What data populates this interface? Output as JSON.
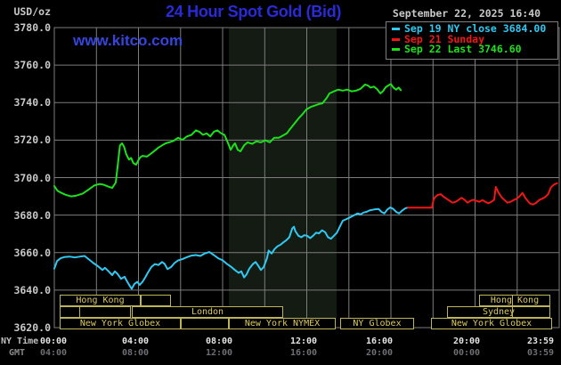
{
  "header": {
    "unit_label": "USD/oz",
    "title": "24 Hour Spot Gold (Bid)",
    "datetime": "September 22, 2025 16:40",
    "watermark": "www.kitco.com"
  },
  "legend": {
    "items": [
      {
        "id": "sep19",
        "label": "Sep 19 NY close 3684.00",
        "color": "#2fc9f2"
      },
      {
        "id": "sep21",
        "label": "Sep 21 Sunday",
        "color": "#f31616"
      },
      {
        "id": "sep22",
        "label": "Sep 22 Last 3746.60",
        "color": "#1ce21c"
      }
    ]
  },
  "axes": {
    "y_ticks": [
      "3780.0",
      "3760.0",
      "3740.0",
      "3720.0",
      "3700.0",
      "3680.0",
      "3660.0",
      "3640.0",
      "3620.0"
    ],
    "x_tick_centers": [
      60,
      152,
      246,
      341,
      426,
      524,
      607
    ],
    "rows": [
      {
        "header": "NY Time",
        "labels": [
          "00:00",
          "04:00",
          "08:00",
          "12:00",
          "16:00",
          "20:00",
          "23:59"
        ]
      },
      {
        "header": "GMT",
        "labels": [
          "04:00",
          "08:00",
          "12:00",
          "16:00",
          "20:00",
          "00:00",
          "03:59"
        ]
      }
    ]
  },
  "sessions": {
    "rows": [
      {
        "y": 331,
        "boxes": [
          {
            "x1": 67,
            "x2": 158,
            "label": "Hong Kong",
            "dividers": []
          },
          {
            "x1": 158,
            "x2": 192,
            "label": "",
            "dividers": []
          },
          {
            "x1": 538,
            "x2": 618,
            "label": "Hong Kong",
            "dividers": [
              574
            ]
          }
        ]
      },
      {
        "y": 344,
        "boxes": [
          {
            "x1": 67,
            "x2": 147,
            "label": "",
            "dividers": [
              88
            ]
          },
          {
            "x1": 148,
            "x2": 318,
            "label": "London",
            "dividers": []
          },
          {
            "x1": 502,
            "x2": 618,
            "label": "Sydney",
            "dividers": [
              574
            ]
          }
        ]
      },
      {
        "y": 357,
        "boxes": [
          {
            "x1": 67,
            "x2": 203,
            "label": "New York Globex",
            "dividers": []
          },
          {
            "x1": 203,
            "x2": 257,
            "label": "",
            "dividers": []
          },
          {
            "x1": 257,
            "x2": 377,
            "label": "New York NYMEX",
            "dividers": []
          },
          {
            "x1": 382,
            "x2": 465,
            "label": "NY Globex",
            "dividers": []
          },
          {
            "x1": 484,
            "x2": 620,
            "label": "New York Globex",
            "dividers": []
          }
        ]
      }
    ]
  },
  "chart_data": {
    "type": "line",
    "title": "24 Hour Spot Gold (Bid)",
    "xlabel": "NY Time (hours 00:00 - 23:59)",
    "ylabel": "USD/oz",
    "ylim": [
      3620,
      3780
    ],
    "y_tick_step": 20,
    "x_range_hours": [
      0,
      24
    ],
    "grid": true,
    "grid_color": "#7d7d7d",
    "background": "#000000",
    "highlight_band": {
      "x1": 257,
      "x2": 378,
      "y1": 31,
      "y2": 358,
      "color": "#131b13"
    },
    "series": [
      {
        "id": "sep19",
        "name": "Sep 19 NY close",
        "color": "#2fc9f2",
        "final_value": 3684.0,
        "points": [
          [
            0,
            3651.5
          ],
          [
            0.13,
            3655.5
          ],
          [
            0.3,
            3657
          ],
          [
            0.47,
            3657.6
          ],
          [
            0.72,
            3657.9
          ],
          [
            0.97,
            3657.4
          ],
          [
            1.23,
            3657.9
          ],
          [
            1.44,
            3658.2
          ],
          [
            1.65,
            3656.3
          ],
          [
            1.86,
            3654.4
          ],
          [
            2.07,
            3652.8
          ],
          [
            2.29,
            3650.7
          ],
          [
            2.41,
            3651.9
          ],
          [
            2.58,
            3650
          ],
          [
            2.75,
            3648
          ],
          [
            2.88,
            3650
          ],
          [
            3,
            3648.7
          ],
          [
            3.17,
            3646
          ],
          [
            3.34,
            3647.1
          ],
          [
            3.47,
            3644.4
          ],
          [
            3.6,
            3642
          ],
          [
            3.68,
            3640.7
          ],
          [
            3.81,
            3643.3
          ],
          [
            3.94,
            3644.4
          ],
          [
            4.06,
            3642.8
          ],
          [
            4.19,
            3644.4
          ],
          [
            4.32,
            3646.8
          ],
          [
            4.44,
            3649.2
          ],
          [
            4.61,
            3652.3
          ],
          [
            4.78,
            3653.9
          ],
          [
            4.95,
            3653.4
          ],
          [
            5.12,
            3655
          ],
          [
            5.25,
            3653.9
          ],
          [
            5.38,
            3651.2
          ],
          [
            5.55,
            3652.3
          ],
          [
            5.71,
            3654.4
          ],
          [
            5.88,
            3655.8
          ],
          [
            6.1,
            3656.6
          ],
          [
            6.31,
            3657.6
          ],
          [
            6.52,
            3658.4
          ],
          [
            6.73,
            3658.7
          ],
          [
            6.94,
            3658.2
          ],
          [
            7.15,
            3659.5
          ],
          [
            7.37,
            3660.3
          ],
          [
            7.58,
            3658.7
          ],
          [
            7.79,
            3657
          ],
          [
            8,
            3655.9
          ],
          [
            8.21,
            3653.9
          ],
          [
            8.42,
            3652.3
          ],
          [
            8.63,
            3650.3
          ],
          [
            8.76,
            3649.2
          ],
          [
            8.89,
            3650
          ],
          [
            9.02,
            3646.8
          ],
          [
            9.14,
            3648.4
          ],
          [
            9.27,
            3651.5
          ],
          [
            9.44,
            3653.9
          ],
          [
            9.57,
            3655
          ],
          [
            9.69,
            3653.1
          ],
          [
            9.82,
            3650.7
          ],
          [
            9.95,
            3652.3
          ],
          [
            10.11,
            3657
          ],
          [
            10.19,
            3661.1
          ],
          [
            10.33,
            3659.5
          ],
          [
            10.47,
            3661.9
          ],
          [
            10.61,
            3663.4
          ],
          [
            10.75,
            3664.2
          ],
          [
            10.89,
            3665.5
          ],
          [
            11.03,
            3666.6
          ],
          [
            11.17,
            3668.2
          ],
          [
            11.31,
            3672.9
          ],
          [
            11.39,
            3673.8
          ],
          [
            11.46,
            3671.4
          ],
          [
            11.6,
            3669
          ],
          [
            11.74,
            3668.2
          ],
          [
            11.88,
            3669.3
          ],
          [
            12.02,
            3669
          ],
          [
            12.16,
            3667.7
          ],
          [
            12.3,
            3669
          ],
          [
            12.44,
            3670.6
          ],
          [
            12.58,
            3670.3
          ],
          [
            12.73,
            3671.9
          ],
          [
            12.87,
            3670.9
          ],
          [
            13.01,
            3668.2
          ],
          [
            13.15,
            3667.4
          ],
          [
            13.29,
            3669
          ],
          [
            13.43,
            3670.6
          ],
          [
            13.57,
            3673.8
          ],
          [
            13.71,
            3677
          ],
          [
            13.85,
            3677.7
          ],
          [
            14,
            3678.5
          ],
          [
            14.14,
            3679.3
          ],
          [
            14.28,
            3680.1
          ],
          [
            14.42,
            3680.9
          ],
          [
            14.56,
            3680.4
          ],
          [
            14.7,
            3681.4
          ],
          [
            14.84,
            3681.7
          ],
          [
            14.98,
            3682.5
          ],
          [
            15.2,
            3683
          ],
          [
            15.41,
            3683.3
          ],
          [
            15.55,
            3681.7
          ],
          [
            15.69,
            3680.9
          ],
          [
            15.83,
            3683
          ],
          [
            15.97,
            3684.1
          ],
          [
            16.11,
            3683.3
          ],
          [
            16.25,
            3681.7
          ],
          [
            16.39,
            3680.9
          ],
          [
            16.54,
            3682.5
          ],
          [
            16.68,
            3683.6
          ],
          [
            16.8,
            3684
          ]
        ]
      },
      {
        "id": "sep21",
        "name": "Sep 21 Sunday",
        "color": "#f31616",
        "points": [
          [
            16.8,
            3684
          ],
          [
            17.95,
            3684
          ],
          [
            18.02,
            3687.9
          ],
          [
            18.09,
            3689.5
          ],
          [
            18.23,
            3690.8
          ],
          [
            18.37,
            3691.1
          ],
          [
            18.51,
            3689.8
          ],
          [
            18.65,
            3688.7
          ],
          [
            18.79,
            3687.6
          ],
          [
            18.93,
            3686.6
          ],
          [
            19.08,
            3687.1
          ],
          [
            19.22,
            3688.2
          ],
          [
            19.36,
            3689.2
          ],
          [
            19.5,
            3688.2
          ],
          [
            19.64,
            3686.6
          ],
          [
            19.78,
            3687.6
          ],
          [
            19.92,
            3688.2
          ],
          [
            20.06,
            3687.6
          ],
          [
            20.2,
            3687.1
          ],
          [
            20.35,
            3688
          ],
          [
            20.49,
            3687.1
          ],
          [
            20.63,
            3686.3
          ],
          [
            20.77,
            3687.1
          ],
          [
            20.91,
            3688.2
          ],
          [
            20.98,
            3695
          ],
          [
            21.12,
            3691.9
          ],
          [
            21.26,
            3689.5
          ],
          [
            21.4,
            3688
          ],
          [
            21.54,
            3686.6
          ],
          [
            21.69,
            3687.1
          ],
          [
            21.83,
            3688
          ],
          [
            21.97,
            3688.7
          ],
          [
            22.11,
            3690
          ],
          [
            22.25,
            3691.9
          ],
          [
            22.4,
            3689
          ],
          [
            22.6,
            3686.3
          ],
          [
            22.75,
            3685.6
          ],
          [
            22.9,
            3686.5
          ],
          [
            23.04,
            3688
          ],
          [
            23.18,
            3688.7
          ],
          [
            23.32,
            3689.5
          ],
          [
            23.47,
            3691.1
          ],
          [
            23.6,
            3694.7
          ],
          [
            23.75,
            3696.3
          ],
          [
            23.9,
            3697
          ]
        ]
      },
      {
        "id": "sep22",
        "name": "Sep 22 Last",
        "color": "#1ce21c",
        "final_value": 3746.6,
        "points": [
          [
            0,
            3695.5
          ],
          [
            0.15,
            3693
          ],
          [
            0.3,
            3692
          ],
          [
            0.55,
            3690.8
          ],
          [
            0.8,
            3690
          ],
          [
            1.05,
            3690.4
          ],
          [
            1.35,
            3691.5
          ],
          [
            1.6,
            3693.4
          ],
          [
            1.9,
            3695.8
          ],
          [
            2.15,
            3696.6
          ],
          [
            2.35,
            3696.2
          ],
          [
            2.55,
            3695.3
          ],
          [
            2.75,
            3694.5
          ],
          [
            2.92,
            3697.4
          ],
          [
            3.02,
            3706.9
          ],
          [
            3.12,
            3717.2
          ],
          [
            3.22,
            3718.3
          ],
          [
            3.32,
            3716.4
          ],
          [
            3.42,
            3712.4
          ],
          [
            3.55,
            3709.6
          ],
          [
            3.65,
            3710.5
          ],
          [
            3.76,
            3707.7
          ],
          [
            3.89,
            3706.9
          ],
          [
            4,
            3709.3
          ],
          [
            4.08,
            3710.8
          ],
          [
            4.19,
            3711.6
          ],
          [
            4.4,
            3711.2
          ],
          [
            4.61,
            3712.9
          ],
          [
            4.82,
            3714.8
          ],
          [
            4.95,
            3716
          ],
          [
            5.12,
            3717.2
          ],
          [
            5.29,
            3718.3
          ],
          [
            5.46,
            3718.8
          ],
          [
            5.67,
            3719.6
          ],
          [
            5.88,
            3721.2
          ],
          [
            6.09,
            3720.2
          ],
          [
            6.31,
            3722
          ],
          [
            6.52,
            3722.8
          ],
          [
            6.73,
            3725.2
          ],
          [
            6.9,
            3724.4
          ],
          [
            7.07,
            3722.8
          ],
          [
            7.24,
            3723.6
          ],
          [
            7.41,
            3722
          ],
          [
            7.58,
            3724.4
          ],
          [
            7.75,
            3725.2
          ],
          [
            7.92,
            3723.7
          ],
          [
            8.09,
            3722.8
          ],
          [
            8.21,
            3719.6
          ],
          [
            8.3,
            3717.2
          ],
          [
            8.38,
            3714.8
          ],
          [
            8.51,
            3717.2
          ],
          [
            8.59,
            3718.3
          ],
          [
            8.72,
            3714.8
          ],
          [
            8.85,
            3714
          ],
          [
            9.02,
            3717.2
          ],
          [
            9.19,
            3718.8
          ],
          [
            9.4,
            3718
          ],
          [
            9.61,
            3719.3
          ],
          [
            9.82,
            3718.8
          ],
          [
            10.03,
            3719.9
          ],
          [
            10.24,
            3718.8
          ],
          [
            10.45,
            3721.2
          ],
          [
            10.67,
            3721.2
          ],
          [
            10.88,
            3722.5
          ],
          [
            11.05,
            3723.6
          ],
          [
            11.18,
            3725.5
          ],
          [
            11.39,
            3728.5
          ],
          [
            11.6,
            3731.5
          ],
          [
            11.81,
            3734
          ],
          [
            11.98,
            3736.3
          ],
          [
            12.19,
            3737.7
          ],
          [
            12.4,
            3738.5
          ],
          [
            12.61,
            3739.3
          ],
          [
            12.74,
            3739.6
          ],
          [
            12.95,
            3742.5
          ],
          [
            13.08,
            3744.9
          ],
          [
            13.29,
            3746
          ],
          [
            13.5,
            3746.9
          ],
          [
            13.71,
            3746.4
          ],
          [
            13.92,
            3746.9
          ],
          [
            14.13,
            3746
          ],
          [
            14.34,
            3746.4
          ],
          [
            14.55,
            3747.3
          ],
          [
            14.77,
            3749.6
          ],
          [
            14.9,
            3749.2
          ],
          [
            15.03,
            3748
          ],
          [
            15.19,
            3748.5
          ],
          [
            15.33,
            3747.3
          ],
          [
            15.5,
            3744.9
          ],
          [
            15.62,
            3746
          ],
          [
            15.75,
            3748.2
          ],
          [
            15.88,
            3749.2
          ],
          [
            16,
            3749.9
          ],
          [
            16.12,
            3748
          ],
          [
            16.25,
            3746.9
          ],
          [
            16.37,
            3748
          ],
          [
            16.47,
            3746.6
          ]
        ]
      }
    ]
  }
}
